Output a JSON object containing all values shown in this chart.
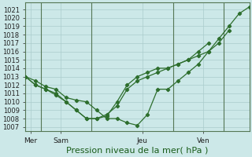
{
  "title": "Pression niveau de la mer( hPa )",
  "bg_color": "#cce8e8",
  "grid_color": "#aacccc",
  "line_color": "#2d6e2d",
  "ylim": [
    1006.5,
    1021.8
  ],
  "yticks": [
    1007,
    1008,
    1009,
    1010,
    1011,
    1012,
    1013,
    1014,
    1015,
    1016,
    1017,
    1018,
    1019,
    1020,
    1021
  ],
  "xlim": [
    0,
    22
  ],
  "day_positions": [
    0.5,
    3.5,
    11.5,
    17.5
  ],
  "day_labels": [
    "Mer",
    "Sam",
    "Jeu",
    "Ven"
  ],
  "day_vlines": [
    1.5,
    6.5,
    14.5,
    19.5
  ],
  "series1": {
    "x": [
      0,
      1,
      2,
      3,
      4,
      5,
      6,
      7,
      8,
      9,
      10,
      11,
      12,
      13,
      14,
      15,
      16,
      17,
      18,
      19,
      20,
      21,
      22
    ],
    "y": [
      1013.0,
      1012.5,
      1011.8,
      1011.5,
      1010.5,
      1010.2,
      1010.0,
      1009.0,
      1008.0,
      1008.0,
      1007.5,
      1007.2,
      1008.5,
      1011.5,
      1011.5,
      1012.5,
      1013.5,
      1014.5,
      1016.0,
      1017.5,
      1019.0,
      1020.5,
      1021.3
    ]
  },
  "series2": {
    "x": [
      0,
      1,
      2,
      3,
      4,
      5,
      6,
      7,
      8,
      9,
      10,
      11,
      12,
      13,
      14,
      15,
      16,
      17,
      18,
      19,
      20
    ],
    "y": [
      1013.0,
      1012.0,
      1011.5,
      1010.8,
      1010.0,
      1009.0,
      1008.0,
      1008.0,
      1008.3,
      1010.0,
      1012.0,
      1013.0,
      1013.5,
      1014.0,
      1014.0,
      1014.5,
      1015.0,
      1015.5,
      1016.0,
      1017.0,
      1018.5
    ]
  },
  "series3": {
    "x": [
      0,
      1,
      2,
      3,
      4,
      5,
      6,
      7,
      8,
      9,
      10,
      11,
      12,
      13,
      14,
      15,
      16,
      17,
      18
    ],
    "y": [
      1013.0,
      1012.0,
      1011.5,
      1011.0,
      1010.0,
      1009.0,
      1008.0,
      1008.0,
      1008.5,
      1009.5,
      1011.5,
      1012.5,
      1013.0,
      1013.5,
      1014.0,
      1014.5,
      1015.0,
      1016.0,
      1017.0
    ]
  },
  "n_xgrid": 23,
  "ylabel_fontsize": 6,
  "xlabel_fontsize": 8,
  "tick_fontsize": 6.5
}
